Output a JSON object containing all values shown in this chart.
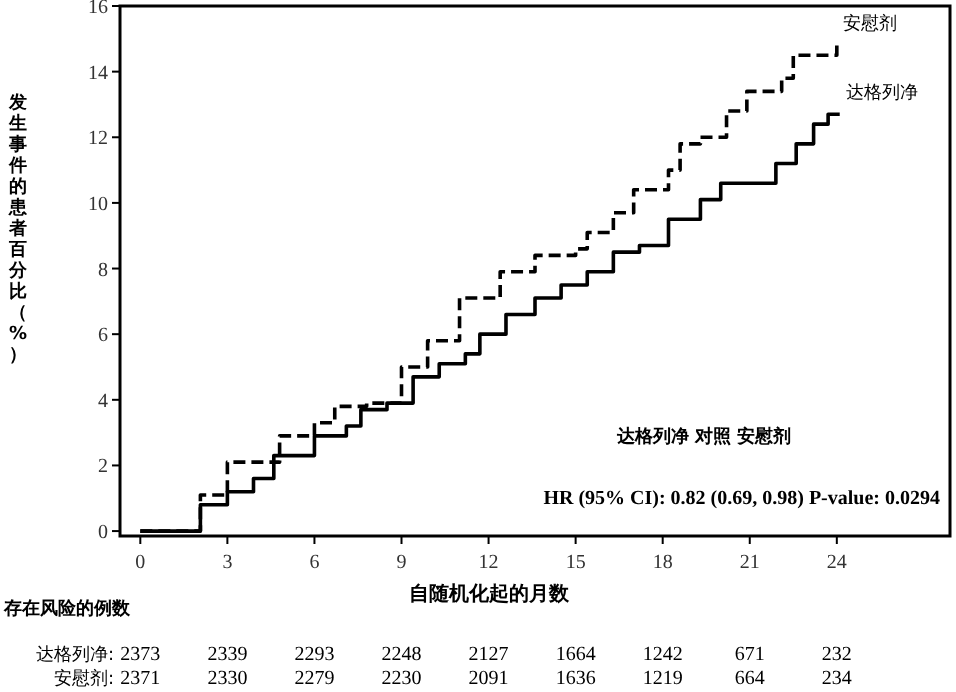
{
  "chart_data": {
    "type": "step",
    "xlabel": "自随机化起的月数",
    "ylabel": "发生事件的患者百分比（%）",
    "xlim": [
      -0.7,
      27.9
    ],
    "xticks": [
      0,
      3,
      6,
      9,
      12,
      15,
      18,
      21,
      24
    ],
    "ylim": [
      -0.15,
      16
    ],
    "yticks": [
      0,
      2,
      4,
      6,
      8,
      10,
      12,
      14,
      16
    ],
    "grid": false,
    "legend": false,
    "series": [
      {
        "name": "安慰剂",
        "color": "#000000",
        "line_style": "dashed",
        "x": [
          0,
          2.07,
          3.0,
          4.8,
          6.0,
          6.7,
          7.8,
          9.0,
          9.9,
          11.0,
          12.4,
          13.6,
          15.0,
          15.4,
          16.3,
          17.0,
          18.2,
          18.6,
          19.3,
          20.2,
          20.9,
          22.1,
          22.5,
          23.9,
          24.0
        ],
        "values": [
          0,
          1.1,
          2.1,
          2.9,
          3.3,
          3.8,
          3.9,
          5.0,
          5.8,
          7.1,
          7.9,
          8.4,
          8.6,
          9.1,
          9.7,
          10.4,
          11.0,
          11.8,
          12.0,
          12.8,
          13.4,
          13.8,
          14.5,
          14.5,
          14.8
        ]
      },
      {
        "name": "达格列净",
        "color": "#000000",
        "line_style": "solid",
        "x": [
          0,
          2.07,
          3.0,
          3.9,
          4.6,
          6.0,
          7.1,
          7.6,
          8.5,
          9.4,
          10.3,
          11.2,
          11.7,
          12.6,
          13.6,
          14.5,
          15.4,
          16.3,
          17.2,
          18.2,
          19.3,
          20.0,
          21.2,
          21.9,
          22.6,
          23.0,
          23.2,
          23.7,
          24.1
        ],
        "values": [
          0,
          0.8,
          1.2,
          1.6,
          2.3,
          2.9,
          3.2,
          3.7,
          3.9,
          4.7,
          5.1,
          5.4,
          6.0,
          6.6,
          7.1,
          7.5,
          7.9,
          8.5,
          8.7,
          9.5,
          10.1,
          10.6,
          10.6,
          11.2,
          11.8,
          11.8,
          12.4,
          12.7,
          12.7
        ]
      }
    ],
    "annotations": [
      "达格列净 对照 安慰剂",
      "HR (95% CI): 0.82 (0.69, 0.98)  P-value: 0.0294",
      "存在风险的例数",
      "达格列净: 2373 2339 2293 2248 2127 1664 1242 671 232",
      "安慰剂: 2371 2330 2279 2230 2091 1636 1219 664 234"
    ]
  }
}
